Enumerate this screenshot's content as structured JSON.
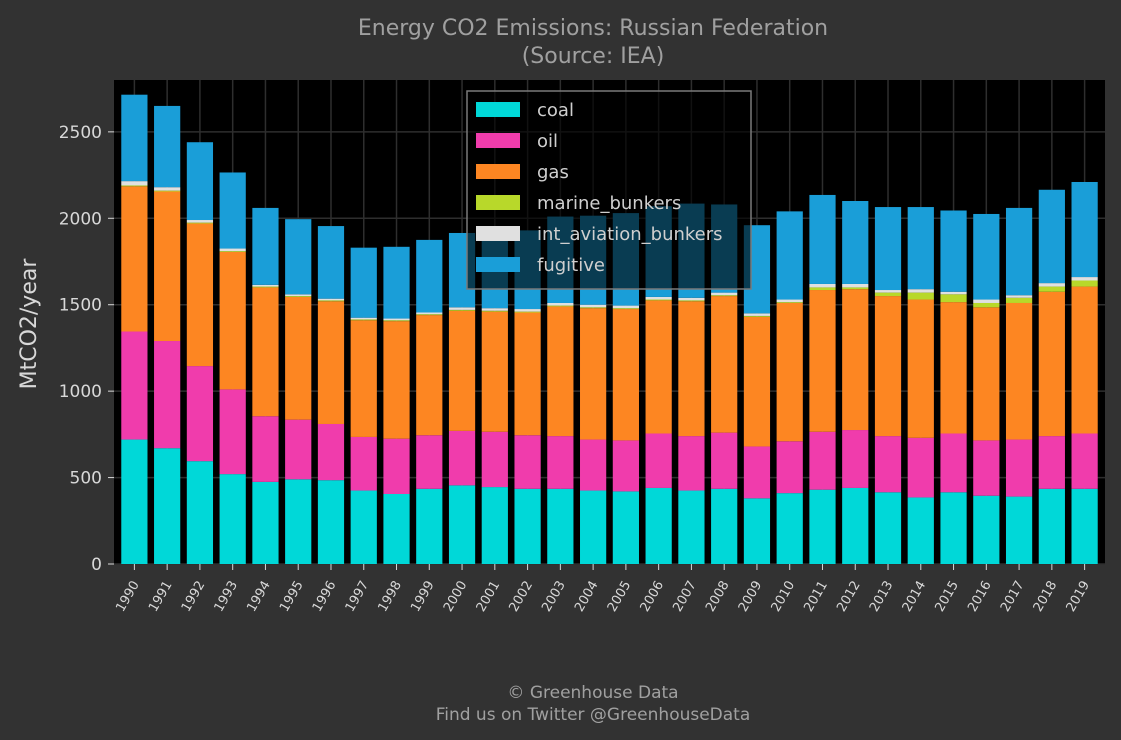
{
  "chart_data": {
    "type": "bar",
    "stacked": true,
    "title": "Energy CO2 Emissions: Russian Federation",
    "subtitle": "(Source: IEA)",
    "xlabel": "",
    "ylabel": "MtCO2/year",
    "ylim": [
      0,
      2800
    ],
    "yticks": [
      0,
      500,
      1000,
      1500,
      2000,
      2500
    ],
    "grid": true,
    "legend_position": "top-center",
    "categories": [
      "1990",
      "1991",
      "1992",
      "1993",
      "1994",
      "1995",
      "1996",
      "1997",
      "1998",
      "1999",
      "2000",
      "2001",
      "2002",
      "2003",
      "2004",
      "2005",
      "2006",
      "2007",
      "2008",
      "2009",
      "2010",
      "2011",
      "2012",
      "2013",
      "2014",
      "2015",
      "2016",
      "2017",
      "2018",
      "2019"
    ],
    "series": [
      {
        "name": "coal",
        "color": "#00d8d8",
        "values": [
          720,
          670,
          595,
          520,
          475,
          490,
          485,
          425,
          405,
          435,
          455,
          445,
          435,
          435,
          425,
          420,
          440,
          425,
          435,
          380,
          410,
          430,
          440,
          415,
          385,
          415,
          395,
          390,
          435,
          435
        ]
      },
      {
        "name": "oil",
        "color": "#f03cac",
        "values": [
          625,
          620,
          550,
          490,
          380,
          345,
          325,
          310,
          320,
          310,
          315,
          320,
          310,
          305,
          295,
          295,
          315,
          315,
          325,
          300,
          300,
          335,
          335,
          325,
          345,
          340,
          320,
          330,
          305,
          320
        ]
      },
      {
        "name": "gas",
        "color": "#fd8622",
        "values": [
          840,
          865,
          825,
          795,
          745,
          710,
          710,
          675,
          680,
          695,
          695,
          695,
          710,
          750,
          760,
          760,
          770,
          780,
          790,
          750,
          800,
          820,
          815,
          810,
          800,
          760,
          770,
          790,
          835,
          850
        ]
      },
      {
        "name": "marine_bunkers",
        "color": "#b8d82a",
        "values": [
          5,
          5,
          5,
          5,
          5,
          5,
          5,
          5,
          5,
          5,
          5,
          5,
          5,
          5,
          5,
          5,
          5,
          5,
          5,
          5,
          5,
          15,
          10,
          20,
          40,
          45,
          25,
          30,
          30,
          35
        ]
      },
      {
        "name": "int_aviation_bunkers",
        "color": "#e0e0e0",
        "values": [
          25,
          20,
          15,
          15,
          10,
          10,
          10,
          10,
          10,
          10,
          15,
          15,
          15,
          15,
          15,
          15,
          15,
          15,
          15,
          15,
          15,
          20,
          20,
          15,
          20,
          15,
          20,
          15,
          20,
          20
        ]
      },
      {
        "name": "fugitive",
        "color": "#1a9ed8",
        "values": [
          500,
          470,
          450,
          440,
          445,
          435,
          420,
          405,
          415,
          420,
          430,
          445,
          455,
          500,
          515,
          535,
          525,
          545,
          510,
          510,
          510,
          515,
          480,
          480,
          475,
          470,
          495,
          505,
          540,
          550
        ]
      }
    ]
  },
  "footer": {
    "line1": "© Greenhouse Data",
    "line2": "Find us on Twitter @GreenhouseData"
  }
}
